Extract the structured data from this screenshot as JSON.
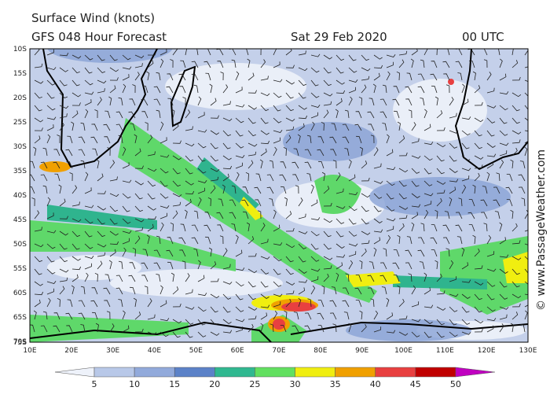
{
  "header": {
    "title": "Surface Wind (knots)",
    "model": "GFS 048 Hour Forecast",
    "date": "Sat 29 Feb 2020",
    "time": "00 UTC"
  },
  "map": {
    "latitude_labels": [
      "10S",
      "15S",
      "20S",
      "25S",
      "30S",
      "35S",
      "40S",
      "45S",
      "50S",
      "55S",
      "60S",
      "65S",
      "70S",
      "75S"
    ],
    "longitude_labels": [
      "10E",
      "20E",
      "30E",
      "40E",
      "50E",
      "60E",
      "70E",
      "80E",
      "90E",
      "100E",
      "110E",
      "120E",
      "130E"
    ]
  },
  "legend": {
    "labels": [
      "5",
      "10",
      "15",
      "20",
      "25",
      "30",
      "35",
      "40",
      "45",
      "50"
    ]
  },
  "credit": "© www.PassageWeather.com"
}
